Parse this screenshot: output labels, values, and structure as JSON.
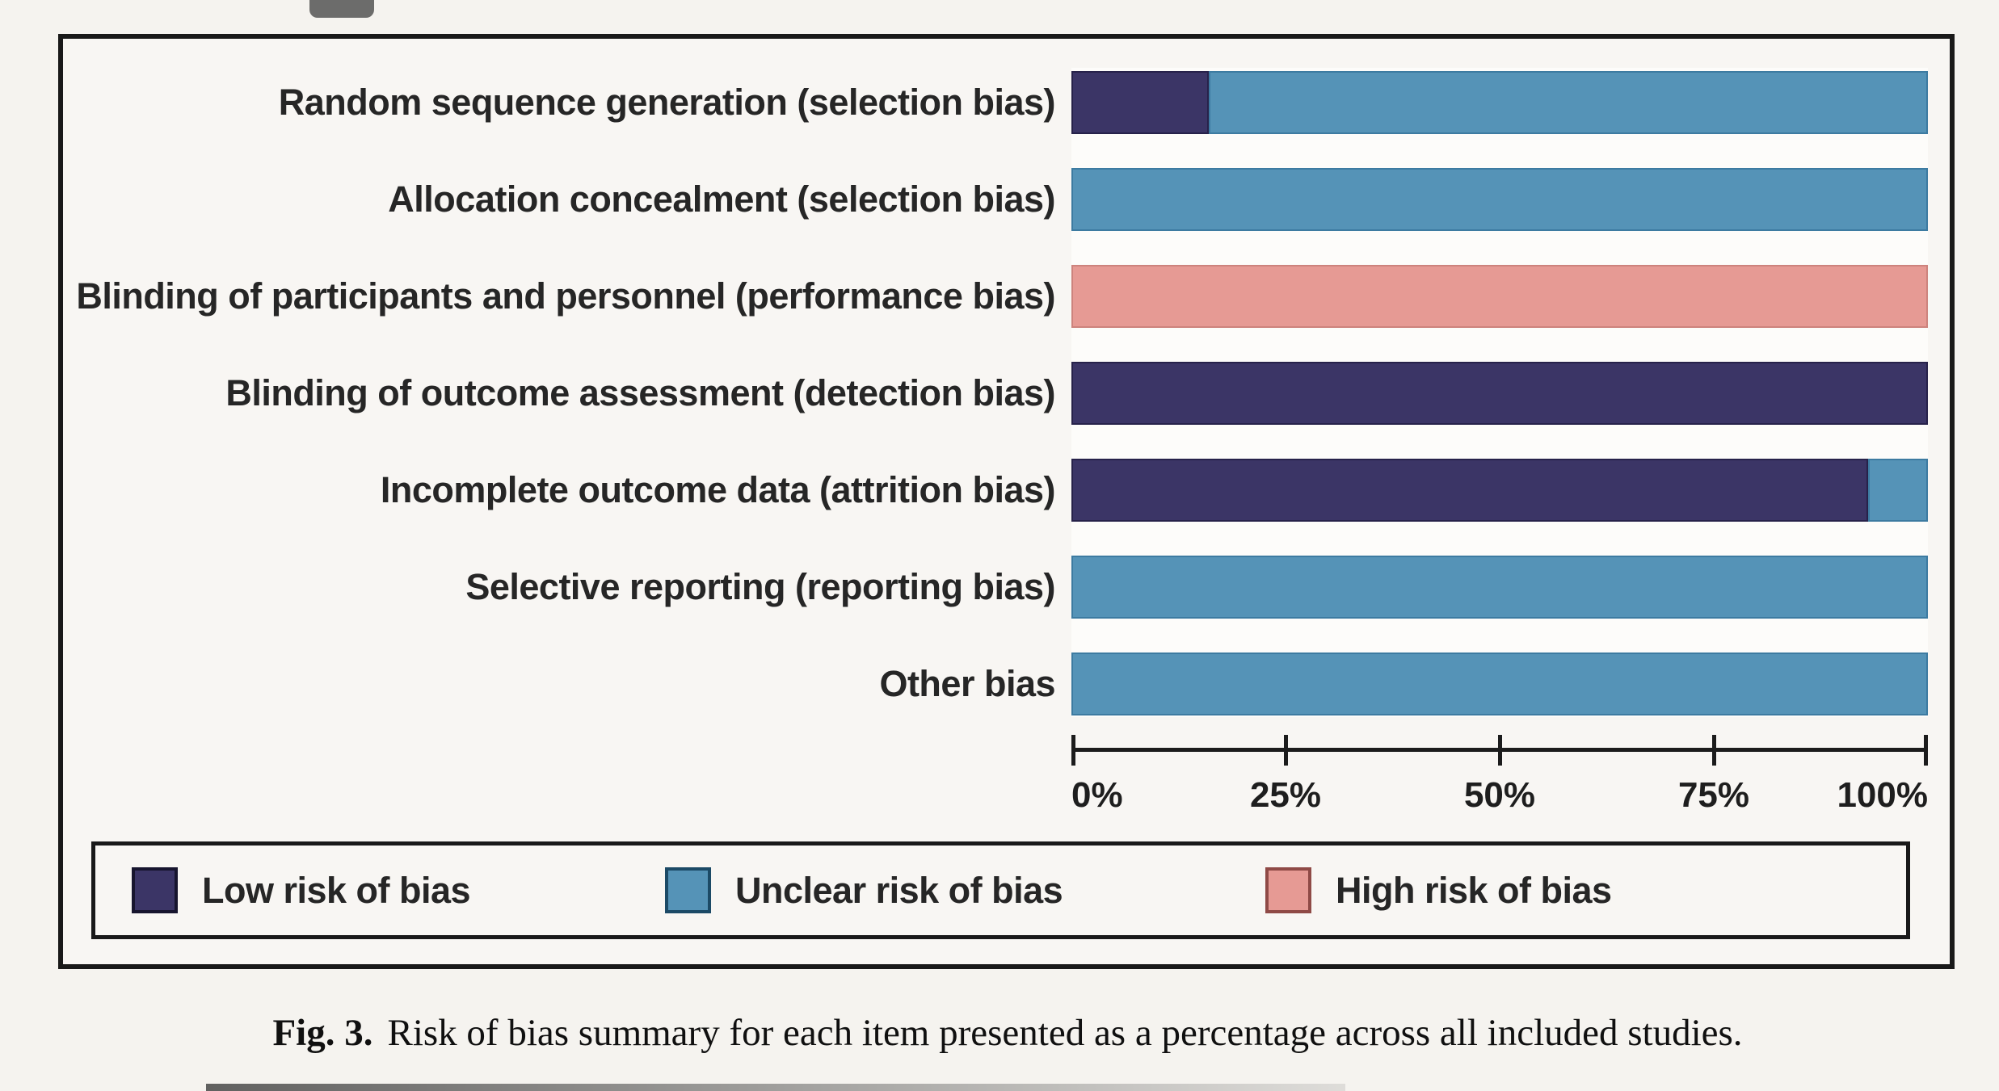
{
  "colors": {
    "low_risk": "#3b3566",
    "low_risk_border": "#27224a",
    "unclear_risk": "#5593b7",
    "unclear_risk_border": "#3d7ba1",
    "high_risk": "#e69a94",
    "high_risk_border": "#cd837d",
    "swatch_border_low": "#17152e",
    "swatch_border_unclear": "#1c4a66",
    "swatch_border_high": "#8f4a46",
    "axis": "#1c1c1c",
    "text": "#262626"
  },
  "chart_data": {
    "type": "bar",
    "orientation": "horizontal",
    "stacked": true,
    "value_unit": "percent",
    "xlim": [
      0,
      100
    ],
    "grid": false,
    "x_ticks": [
      {
        "value": 0,
        "label": "0%"
      },
      {
        "value": 25,
        "label": "25%"
      },
      {
        "value": 50,
        "label": "50%"
      },
      {
        "value": 75,
        "label": "75%"
      },
      {
        "value": 100,
        "label": "100%"
      }
    ],
    "categories": [
      "Random sequence generation (selection bias)",
      "Allocation concealment (selection bias)",
      "Blinding of participants and personnel (performance bias)",
      "Blinding of outcome assessment (detection bias)",
      "Incomplete outcome data (attrition bias)",
      "Selective reporting (reporting bias)",
      "Other bias"
    ],
    "series": [
      {
        "name": "Low risk of bias",
        "color_key": "low_risk",
        "values": [
          16,
          0,
          0,
          100,
          93,
          0,
          0
        ]
      },
      {
        "name": "Unclear risk of bias",
        "color_key": "unclear_risk",
        "values": [
          84,
          100,
          0,
          0,
          7,
          100,
          100
        ]
      },
      {
        "name": "High risk of bias",
        "color_key": "high_risk",
        "values": [
          0,
          0,
          100,
          0,
          0,
          0,
          0
        ]
      }
    ],
    "legend": {
      "position": "bottom",
      "items": [
        {
          "label": "Low risk of bias",
          "color_key": "low_risk",
          "border_key": "swatch_border_low"
        },
        {
          "label": "Unclear risk of bias",
          "color_key": "unclear_risk",
          "border_key": "swatch_border_unclear"
        },
        {
          "label": "High risk of bias",
          "color_key": "high_risk",
          "border_key": "swatch_border_high"
        }
      ]
    }
  },
  "caption": {
    "prefix": "Fig. 3.",
    "text": "Risk of bias summary for each item presented as a percentage across all included studies."
  }
}
